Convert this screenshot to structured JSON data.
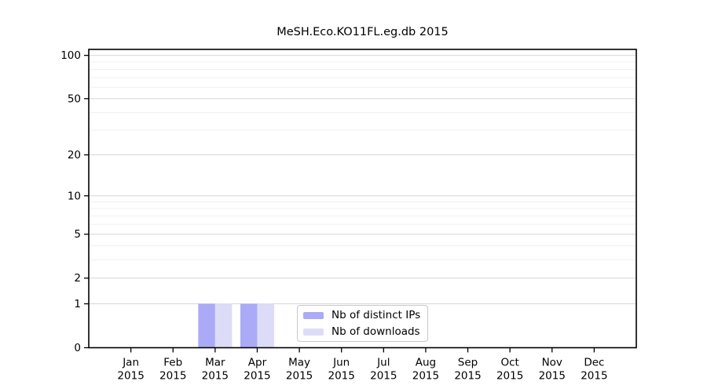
{
  "chart_data": {
    "type": "bar",
    "title": "MeSH.Eco.KO11FL.eg.db 2015",
    "x_axis": {
      "categories": [
        "Jan",
        "Feb",
        "Mar",
        "Apr",
        "May",
        "Jun",
        "Jul",
        "Aug",
        "Sep",
        "Oct",
        "Nov",
        "Dec"
      ],
      "year_label": "2015"
    },
    "y_axis": {
      "scale": "log10(1+x)",
      "tick_values": [
        0,
        1,
        2,
        5,
        10,
        20,
        50,
        100
      ],
      "minor_gridline_values": [
        3,
        4,
        6,
        7,
        8,
        9,
        30,
        40,
        60,
        70,
        80,
        90
      ],
      "ylim": [
        0,
        110
      ]
    },
    "series": [
      {
        "id": "distinct-ips",
        "name": "Nb of distinct IPs",
        "color": "#aaaaf7",
        "values": [
          0,
          0,
          1,
          1,
          0,
          0,
          0,
          0,
          0,
          0,
          0,
          0
        ]
      },
      {
        "id": "downloads",
        "name": "Nb of downloads",
        "color": "#dcdcf9",
        "values": [
          0,
          0,
          1,
          1,
          0,
          0,
          0,
          0,
          0,
          0,
          0,
          0
        ]
      }
    ],
    "legend": {
      "position": "bottom-center"
    },
    "grid": "horizontal",
    "colors": {
      "frame": "#000000",
      "major_grid": "#d6d6d6",
      "minor_grid": "#f0f0f0",
      "legend_border": "#c9c9c9",
      "background": "#ffffff",
      "text": "#000000"
    }
  }
}
